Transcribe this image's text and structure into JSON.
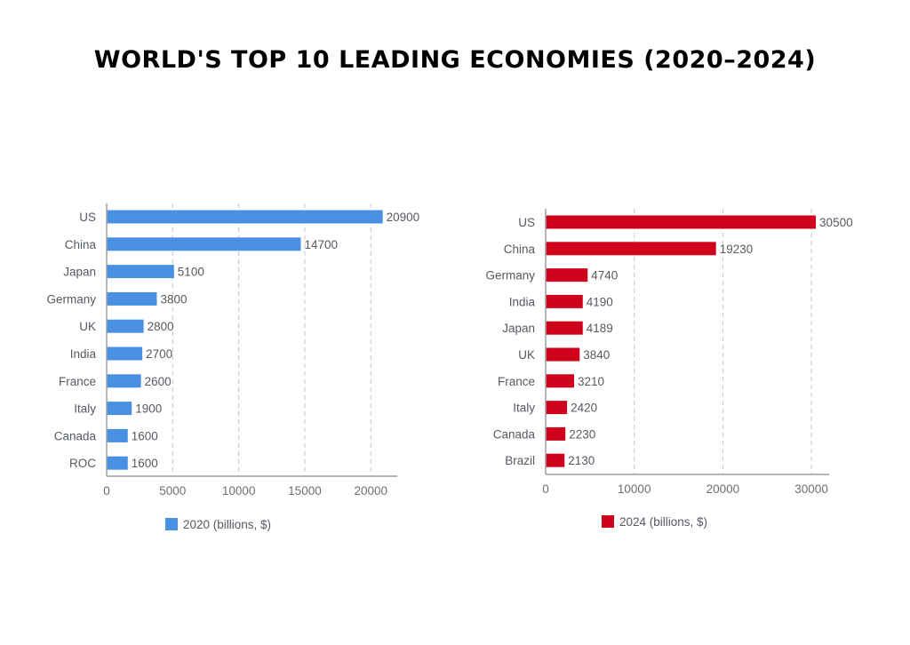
{
  "title": "WORLD'S TOP 10 LEADING ECONOMIES (2020–2024)",
  "chart_data": [
    {
      "type": "bar",
      "orientation": "horizontal",
      "title": "",
      "categories": [
        "US",
        "China",
        "Japan",
        "Germany",
        "UK",
        "India",
        "France",
        "Italy",
        "Canada",
        "ROC"
      ],
      "values": [
        20900,
        14700,
        5100,
        3800,
        2800,
        2700,
        2600,
        1900,
        1600,
        1600
      ],
      "series_name": "2020 (billions, $)",
      "color": "#4a90e2",
      "xlabel": "",
      "ylabel": "",
      "xlim": [
        0,
        22000
      ],
      "xticks": [
        0,
        5000,
        10000,
        15000,
        20000
      ],
      "tick_labels": [
        "0",
        "5000",
        "10000",
        "15000",
        "20000"
      ],
      "grid": "vertical-dashed",
      "legend": "bottom-center"
    },
    {
      "type": "bar",
      "orientation": "horizontal",
      "title": "",
      "categories": [
        "US",
        "China",
        "Germany",
        "India",
        "Japan",
        "UK",
        "France",
        "Italy",
        "Canada",
        "Brazil"
      ],
      "values": [
        30500,
        19230,
        4740,
        4190,
        4189,
        3840,
        3210,
        2420,
        2230,
        2130
      ],
      "series_name": "2024 (billions, $)",
      "color": "#d0021b",
      "xlabel": "",
      "ylabel": "",
      "xlim": [
        0,
        32000
      ],
      "xticks": [
        0,
        10000,
        20000,
        30000
      ],
      "tick_labels": [
        "0",
        "10000",
        "20000",
        "30000"
      ],
      "grid": "vertical-dashed",
      "legend": "bottom-center"
    }
  ]
}
